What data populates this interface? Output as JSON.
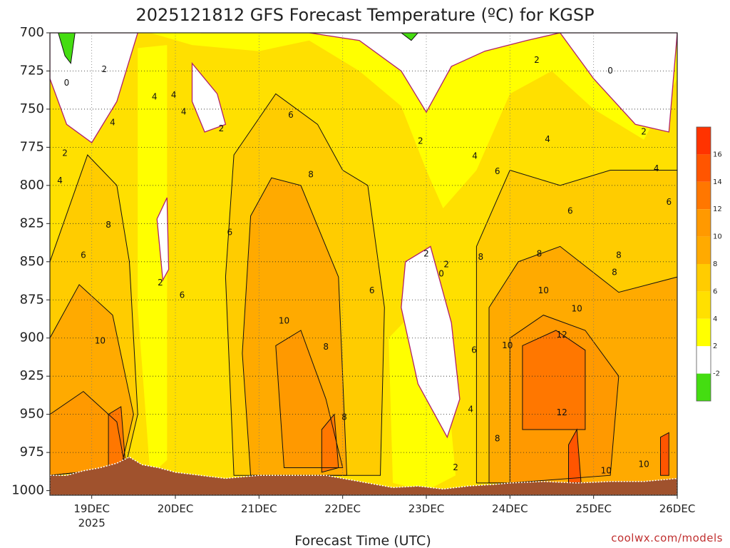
{
  "chart_data": {
    "type": "heatmap",
    "title": "2025121812 GFS Forecast Temperature (ºC) for KGSP",
    "xlabel": "Forecast Time (UTC)",
    "ylabel": "",
    "credit": "coolwx.com/models",
    "x_ticks": [
      {
        "label": "19DEC",
        "sub": "2025",
        "t": 1.0
      },
      {
        "label": "20DEC",
        "sub": "",
        "t": 2.0
      },
      {
        "label": "21DEC",
        "sub": "",
        "t": 3.0
      },
      {
        "label": "22DEC",
        "sub": "",
        "t": 4.0
      },
      {
        "label": "23DEC",
        "sub": "",
        "t": 5.0
      },
      {
        "label": "24DEC",
        "sub": "",
        "t": 6.0
      },
      {
        "label": "25DEC",
        "sub": "",
        "t": 7.0
      },
      {
        "label": "26DEC",
        "sub": "",
        "t": 8.0
      }
    ],
    "xlim": [
      0.5,
      8.0
    ],
    "y_ticks": [
      700,
      725,
      750,
      775,
      800,
      825,
      850,
      875,
      900,
      925,
      950,
      975,
      1000
    ],
    "ylim": [
      700,
      1003
    ],
    "colorbar": {
      "levels": [
        "-2",
        "2",
        "4",
        "6",
        "8",
        "10",
        "12",
        "14",
        "16"
      ],
      "colors": [
        "#44dd11",
        "#ffffff",
        "#ffff00",
        "#ffe000",
        "#ffcc00",
        "#ffaa00",
        "#ff9900",
        "#ff7700",
        "#ff5500",
        "#ff3300"
      ]
    },
    "terrain_color": "#a0522d",
    "terrain_pressure": [
      {
        "t": 0.5,
        "p": 990
      },
      {
        "t": 0.7,
        "p": 990
      },
      {
        "t": 0.9,
        "p": 987
      },
      {
        "t": 1.1,
        "p": 985
      },
      {
        "t": 1.3,
        "p": 982
      },
      {
        "t": 1.45,
        "p": 978
      },
      {
        "t": 1.6,
        "p": 983
      },
      {
        "t": 1.8,
        "p": 985
      },
      {
        "t": 2.0,
        "p": 988
      },
      {
        "t": 2.3,
        "p": 990
      },
      {
        "t": 2.6,
        "p": 992
      },
      {
        "t": 2.8,
        "p": 991
      },
      {
        "t": 3.0,
        "p": 990
      },
      {
        "t": 3.4,
        "p": 990
      },
      {
        "t": 3.8,
        "p": 990
      },
      {
        "t": 4.0,
        "p": 992
      },
      {
        "t": 4.3,
        "p": 995
      },
      {
        "t": 4.6,
        "p": 998
      },
      {
        "t": 4.9,
        "p": 997
      },
      {
        "t": 5.2,
        "p": 999
      },
      {
        "t": 5.5,
        "p": 997
      },
      {
        "t": 5.8,
        "p": 996
      },
      {
        "t": 6.0,
        "p": 995
      },
      {
        "t": 6.4,
        "p": 994
      },
      {
        "t": 6.8,
        "p": 995
      },
      {
        "t": 7.2,
        "p": 994
      },
      {
        "t": 7.6,
        "p": 994
      },
      {
        "t": 8.0,
        "p": 992
      }
    ],
    "contour_labels": [
      {
        "text": "0",
        "t": 0.7,
        "p": 733
      },
      {
        "text": "2",
        "t": 0.68,
        "p": 779
      },
      {
        "text": "2",
        "t": 1.15,
        "p": 724
      },
      {
        "text": "4",
        "t": 0.62,
        "p": 797
      },
      {
        "text": "4",
        "t": 1.25,
        "p": 759
      },
      {
        "text": "6",
        "t": 0.9,
        "p": 846
      },
      {
        "text": "8",
        "t": 1.2,
        "p": 826
      },
      {
        "text": "10",
        "t": 1.1,
        "p": 902
      },
      {
        "text": "4",
        "t": 1.75,
        "p": 742
      },
      {
        "text": "4",
        "t": 1.98,
        "p": 741
      },
      {
        "text": "4",
        "t": 2.1,
        "p": 752
      },
      {
        "text": "2",
        "t": 2.55,
        "p": 763
      },
      {
        "text": "2",
        "t": 1.82,
        "p": 864
      },
      {
        "text": "6",
        "t": 2.08,
        "p": 872
      },
      {
        "text": "6",
        "t": 2.65,
        "p": 831
      },
      {
        "text": "6",
        "t": 3.38,
        "p": 754
      },
      {
        "text": "8",
        "t": 3.62,
        "p": 793
      },
      {
        "text": "10",
        "t": 3.3,
        "p": 889
      },
      {
        "text": "8",
        "t": 3.8,
        "p": 906
      },
      {
        "text": "6",
        "t": 4.35,
        "p": 869
      },
      {
        "text": "8",
        "t": 4.02,
        "p": 952
      },
      {
        "text": "2",
        "t": 4.93,
        "p": 771
      },
      {
        "text": "2",
        "t": 5.0,
        "p": 845
      },
      {
        "text": "2",
        "t": 5.24,
        "p": 852
      },
      {
        "text": "0",
        "t": 5.18,
        "p": 858
      },
      {
        "text": "4",
        "t": 5.58,
        "p": 781
      },
      {
        "text": "6",
        "t": 5.85,
        "p": 791
      },
      {
        "text": "8",
        "t": 5.65,
        "p": 847
      },
      {
        "text": "6",
        "t": 5.57,
        "p": 908
      },
      {
        "text": "4",
        "t": 5.53,
        "p": 947
      },
      {
        "text": "2",
        "t": 5.35,
        "p": 985
      },
      {
        "text": "8",
        "t": 5.85,
        "p": 966
      },
      {
        "text": "10",
        "t": 5.97,
        "p": 905
      },
      {
        "text": "10",
        "t": 6.4,
        "p": 869
      },
      {
        "text": "10",
        "t": 6.8,
        "p": 881
      },
      {
        "text": "12",
        "t": 6.62,
        "p": 898
      },
      {
        "text": "12",
        "t": 6.62,
        "p": 949
      },
      {
        "text": "8",
        "t": 6.35,
        "p": 845
      },
      {
        "text": "6",
        "t": 6.72,
        "p": 817
      },
      {
        "text": "4",
        "t": 6.45,
        "p": 770
      },
      {
        "text": "2",
        "t": 6.32,
        "p": 718
      },
      {
        "text": "0",
        "t": 7.2,
        "p": 725
      },
      {
        "text": "2",
        "t": 7.6,
        "p": 765
      },
      {
        "text": "4",
        "t": 7.75,
        "p": 789
      },
      {
        "text": "6",
        "t": 7.9,
        "p": 811
      },
      {
        "text": "8",
        "t": 7.3,
        "p": 846
      },
      {
        "text": "8",
        "t": 7.25,
        "p": 857
      },
      {
        "text": "10",
        "t": 7.15,
        "p": 987
      },
      {
        "text": "10",
        "t": 7.6,
        "p": 983
      }
    ]
  }
}
